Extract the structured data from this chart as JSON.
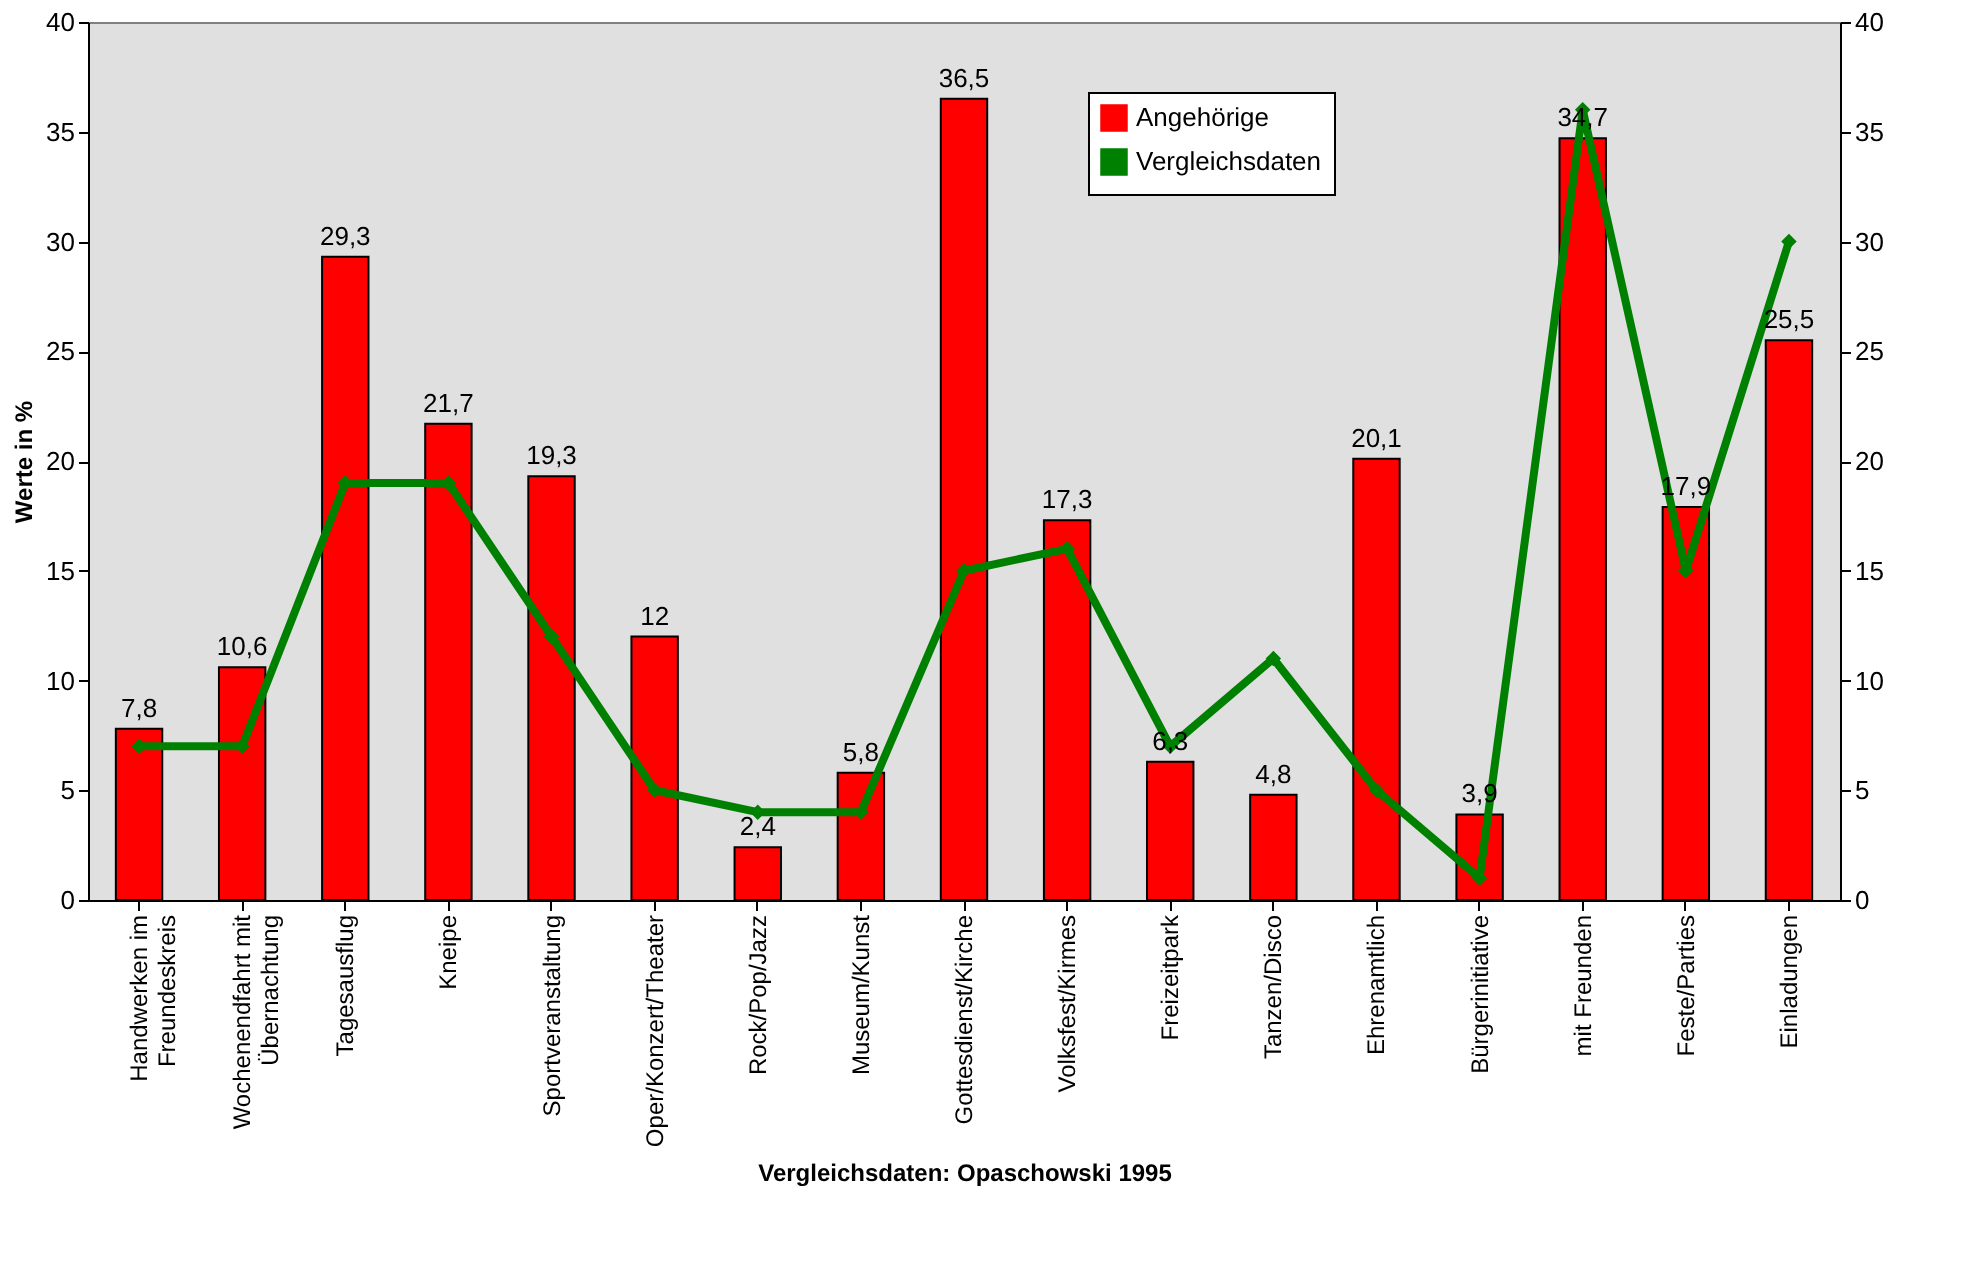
{
  "chart_data": {
    "type": "bar",
    "xlabel": "Vergleichsdaten: Opaschowski 1995",
    "ylabel": "Werte in %",
    "categories": [
      "Handwerken im\nFreundeskreis",
      "Wochenendfahrt mit\nÜbernachtung",
      "Tagesausflug",
      "Kneipe",
      "Sportveranstaltung",
      "Oper/Konzert/Theater",
      "Rock/Pop/Jazz",
      "Museum/Kunst",
      "Gottesdienst/Kirche",
      "Volksfest/Kirmes",
      "Freizeitpark",
      "Tanzen/Disco",
      "Ehrenamtlich",
      "Bürgerinitiative",
      "mit Freunden",
      "Feste/Parties",
      "Einladungen"
    ],
    "series": [
      {
        "name": "Angehörige",
        "color": "#ff0000",
        "values": [
          7.8,
          10.6,
          29.3,
          21.7,
          19.3,
          12,
          2.4,
          5.8,
          36.5,
          17.3,
          6.3,
          4.8,
          20.1,
          3.9,
          34.7,
          17.9,
          25.5
        ],
        "value_labels": [
          "7,8",
          "10,6",
          "29,3",
          "21,7",
          "19,3",
          "12",
          "2,4",
          "5,8",
          "36,5",
          "17,3",
          "6,3",
          "4,8",
          "20,1",
          "3,9",
          "34,7",
          "17,9",
          "25,5"
        ]
      },
      {
        "name": "Vergleichsdaten",
        "type": "line",
        "axis": "y2",
        "color": "#008000",
        "marker": "diamond",
        "line_style": "solid",
        "values": [
          7,
          7,
          19,
          19,
          12,
          5,
          4,
          4,
          15,
          16,
          7,
          11,
          5,
          1,
          36,
          15,
          30
        ]
      }
    ],
    "ylim": [
      0,
      40
    ],
    "yticks": [
      0,
      5,
      10,
      15,
      20,
      25,
      30,
      35,
      40
    ],
    "y2lim": [
      0,
      40
    ],
    "y2ticks": [
      0,
      5,
      10,
      15,
      20,
      25,
      30,
      35,
      40
    ],
    "legend": "top",
    "grid": false
  }
}
